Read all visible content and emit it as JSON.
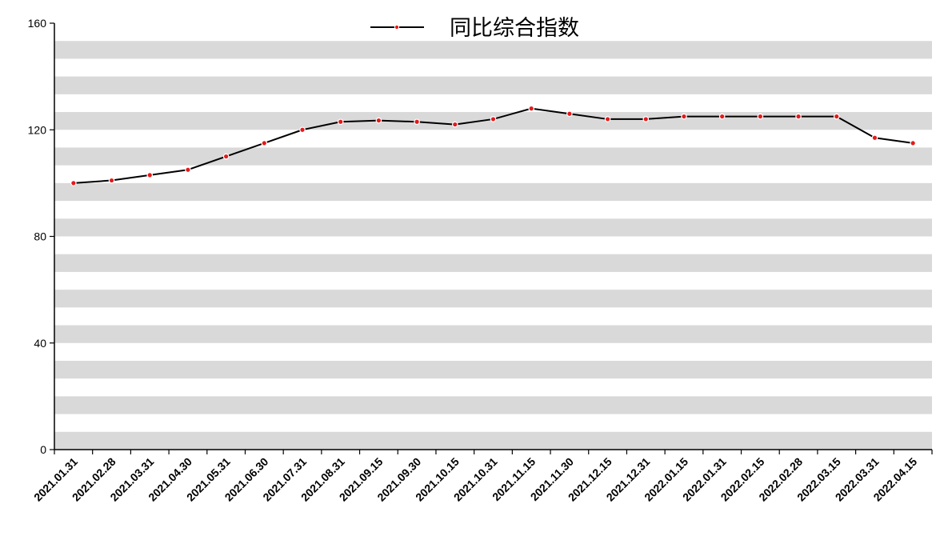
{
  "chart_data": {
    "type": "line",
    "title": "",
    "xlabel": "",
    "ylabel": "",
    "ylim": [
      0,
      160
    ],
    "yticks": [
      0,
      40,
      80,
      120,
      160
    ],
    "grid": "horizontal-bands",
    "legend_position": "top-center",
    "colors": {
      "line": "#000000",
      "marker": "#e31a1c",
      "band": "#d9d9d9",
      "axis": "#000000"
    },
    "categories": [
      "2021.01.31",
      "2021.02.28",
      "2021.03.31",
      "2021.04.30",
      "2021.05.31",
      "2021.06.30",
      "2021.07.31",
      "2021.08.31",
      "2021.09.15",
      "2021.09.30",
      "2021.10.15",
      "2021.10.31",
      "2021.11.15",
      "2021.11.30",
      "2021.12.15",
      "2021.12.31",
      "2022.01.15",
      "2022.01.31",
      "2022.02.15",
      "2022.02.28",
      "2022.03.15",
      "2022.03.31",
      "2022.04.15"
    ],
    "series": [
      {
        "name": "同比综合指数",
        "values": [
          100,
          101,
          103,
          105,
          110,
          115,
          120,
          123,
          123.5,
          123,
          122,
          124,
          128,
          126,
          124,
          124,
          125,
          125,
          125,
          125,
          125,
          117,
          115
        ]
      }
    ]
  }
}
